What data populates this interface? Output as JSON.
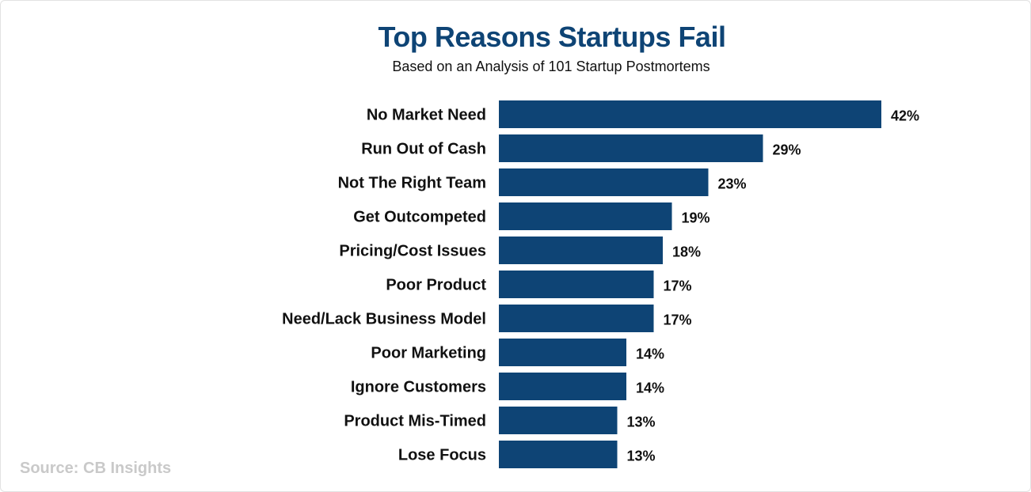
{
  "chart_data": {
    "type": "bar",
    "orientation": "horizontal",
    "title": "Top Reasons Startups Fail",
    "subtitle": "Based on an Analysis of 101 Startup Postmortems",
    "categories": [
      "No Market Need",
      "Run Out of Cash",
      "Not The Right Team",
      "Get Outcompeted",
      "Pricing/Cost Issues",
      "Poor Product",
      "Need/Lack Business Model",
      "Poor Marketing",
      "Ignore Customers",
      "Product Mis-Timed",
      "Lose Focus"
    ],
    "values": [
      42,
      29,
      23,
      19,
      18,
      17,
      17,
      14,
      14,
      13,
      13
    ],
    "value_labels": [
      "42%",
      "29%",
      "23%",
      "19%",
      "18%",
      "17%",
      "17%",
      "14%",
      "14%",
      "13%",
      "13%"
    ],
    "unit": "%",
    "bar_color": "#0e4475",
    "grid": false,
    "legend": "none"
  },
  "source": "Source: CB Insights"
}
